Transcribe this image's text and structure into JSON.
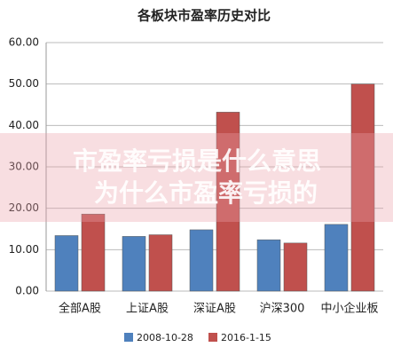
{
  "chart_data": {
    "type": "bar",
    "title": "各板块市盈率历史对比",
    "categories": [
      "全部A股",
      "上证A股",
      "深证A股",
      "沪深300",
      "中小企业板"
    ],
    "series": [
      {
        "name": "2008-10-28",
        "color": "#4f81bd",
        "values": [
          13.4,
          13.2,
          14.8,
          12.4,
          16.1
        ]
      },
      {
        "name": "2016-1-15",
        "color": "#c0504d",
        "values": [
          18.6,
          13.6,
          43.2,
          11.6,
          50.0
        ]
      }
    ],
    "ylim": [
      0,
      60
    ],
    "yticks": [
      {
        "value": 0,
        "label": "0.00"
      },
      {
        "value": 10,
        "label": "10.00"
      },
      {
        "value": 20,
        "label": "20.00"
      },
      {
        "value": 30,
        "label": "30.00"
      },
      {
        "value": 40,
        "label": "40.00"
      },
      {
        "value": 50,
        "label": "50.00"
      },
      {
        "value": 60,
        "label": "60.00"
      }
    ],
    "grid": true,
    "legend": "bottom",
    "overlay_text": [
      "市盈率亏损是什么意思",
      "为什么市盈率亏损的"
    ]
  }
}
